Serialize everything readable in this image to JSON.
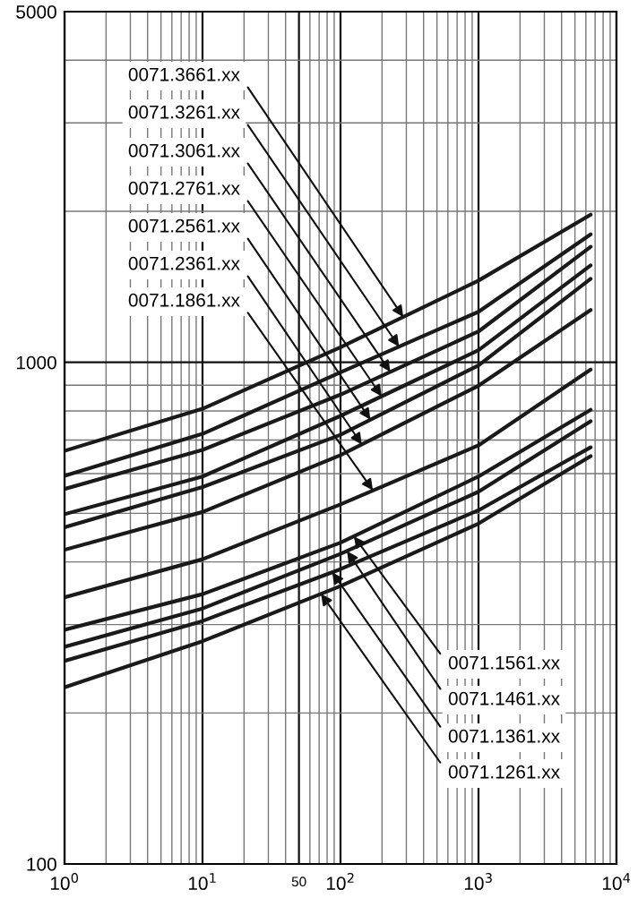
{
  "chart_data": {
    "type": "line",
    "log": "xy",
    "grid": true,
    "marker": "none",
    "line_style": "solid",
    "x": [
      1,
      10,
      100,
      1000,
      6500
    ],
    "xlim": [
      1,
      10000
    ],
    "xticks": [
      {
        "value": 1,
        "label": "10$^{0}$"
      },
      {
        "value": 2,
        "label": null
      },
      {
        "value": 3,
        "label": null
      },
      {
        "value": 4,
        "label": null
      },
      {
        "value": 5,
        "label": null
      },
      {
        "value": 6,
        "label": null
      },
      {
        "value": 7,
        "label": null
      },
      {
        "value": 8,
        "label": null
      },
      {
        "value": 9,
        "label": null
      },
      {
        "value": 10,
        "label": "10$^{1}$"
      },
      {
        "value": 20,
        "label": null
      },
      {
        "value": 30,
        "label": null
      },
      {
        "value": 40,
        "label": null
      },
      {
        "value": 50,
        "label": "50"
      },
      {
        "value": 60,
        "label": null
      },
      {
        "value": 70,
        "label": null
      },
      {
        "value": 80,
        "label": null
      },
      {
        "value": 90,
        "label": null
      },
      {
        "value": 100,
        "label": "10$^{2}$"
      },
      {
        "value": 200,
        "label": null
      },
      {
        "value": 300,
        "label": null
      },
      {
        "value": 400,
        "label": null
      },
      {
        "value": 500,
        "label": null
      },
      {
        "value": 600,
        "label": null
      },
      {
        "value": 700,
        "label": null
      },
      {
        "value": 800,
        "label": null
      },
      {
        "value": 900,
        "label": null
      },
      {
        "value": 1000,
        "label": "10$^{3}$"
      },
      {
        "value": 2000,
        "label": null
      },
      {
        "value": 3000,
        "label": null
      },
      {
        "value": 4000,
        "label": null
      },
      {
        "value": 5000,
        "label": null
      },
      {
        "value": 6000,
        "label": null
      },
      {
        "value": 7000,
        "label": null
      },
      {
        "value": 8000,
        "label": null
      },
      {
        "value": 9000,
        "label": null
      },
      {
        "value": 10000,
        "label": "10$^{4}$"
      }
    ],
    "ylim": [
      100,
      5000
    ],
    "yticks": [
      100,
      {
        "value": 200,
        "label": null
      },
      {
        "value": 300,
        "label": null
      },
      {
        "value": 400,
        "label": null
      },
      {
        "value": 500,
        "label": null
      },
      {
        "value": 600,
        "label": null
      },
      {
        "value": 700,
        "label": null
      },
      {
        "value": 800,
        "label": null
      },
      {
        "value": 900,
        "label": null
      },
      1000,
      {
        "value": 2000,
        "label": null
      },
      {
        "value": 3000,
        "label": null
      },
      {
        "value": 4000,
        "label": null
      },
      5000
    ],
    "series": [
      {
        "name": "0071.3661.xx",
        "color": "#1a1a1a",
        "values": [
          666,
          808,
          1071,
          1455,
          1969
        ]
      },
      {
        "name": "0071.3261.xx",
        "color": "#1a1a1a",
        "values": [
          594,
          720,
          955,
          1261,
          1799
        ]
      },
      {
        "name": "0071.3061.xx",
        "color": "#1a1a1a",
        "values": [
          559,
          669,
          862,
          1152,
          1699
        ]
      },
      {
        "name": "0071.2761.xx",
        "color": "#1a1a1a",
        "values": [
          498,
          592,
          782,
          1057,
          1560
        ]
      },
      {
        "name": "0071.2561.xx",
        "color": "#1a1a1a",
        "values": [
          469,
          564,
          717,
          986,
          1467
        ]
      },
      {
        "name": "0071.2361.xx",
        "color": "#1a1a1a",
        "values": [
          423,
          503,
          653,
          898,
          1271
        ]
      },
      {
        "name": "0071.1861.xx",
        "color": "#1a1a1a",
        "values": [
          340,
          405,
          521,
          683,
          967
        ]
      },
      {
        "name": "0071.1561.xx",
        "color": "#1a1a1a",
        "values": [
          293,
          345,
          437,
          592,
          804
        ]
      },
      {
        "name": "0071.1461.xx",
        "color": "#1a1a1a",
        "values": [
          271,
          323,
          415,
          552,
          763
        ]
      },
      {
        "name": "0071.1361.xx",
        "color": "#1a1a1a",
        "values": [
          254,
          305,
          387,
          507,
          677
        ]
      },
      {
        "name": "0071.1261.xx",
        "color": "#1a1a1a",
        "values": [
          225,
          278,
          358,
          477,
          650
        ]
      }
    ]
  }
}
